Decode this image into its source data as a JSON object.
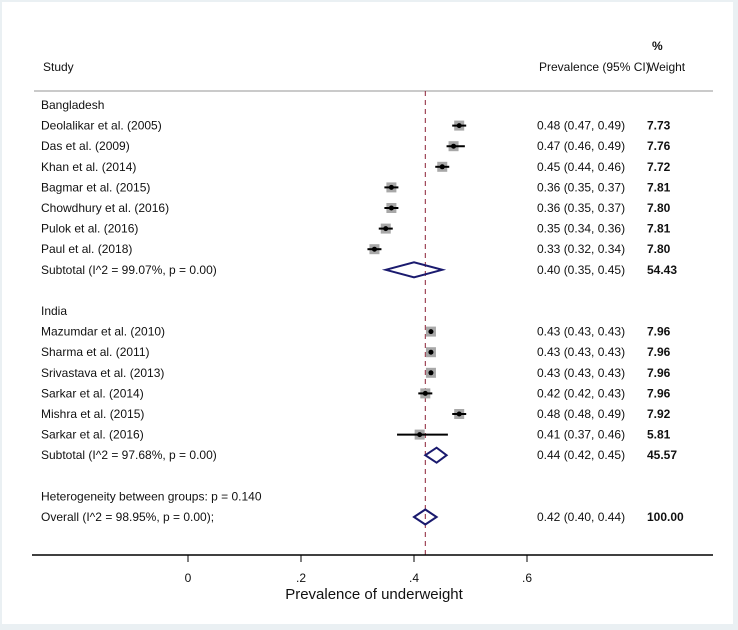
{
  "chart_data": {
    "type": "forest",
    "xlabel": "Prevalence of underweight",
    "xlim": [
      -0.27,
      0.93
    ],
    "xticks": [
      0,
      0.2,
      0.4,
      0.6
    ],
    "xtick_labels": [
      "0",
      ".2",
      ".4",
      ".6"
    ],
    "reference_line": 0.42,
    "headers": {
      "study": "Study",
      "estimate": "Prevalence (95% CI)",
      "weight_top": "%",
      "weight": "Weight"
    },
    "rows": [
      {
        "kind": "group",
        "label": "Bangladesh"
      },
      {
        "kind": "study",
        "label": "Deolalikar et al. (2005)",
        "est": 0.48,
        "lo": 0.47,
        "hi": 0.49,
        "text": "0.48 (0.47, 0.49)",
        "weight": "7.73"
      },
      {
        "kind": "study",
        "label": "Das et al. (2009)",
        "est": 0.47,
        "lo": 0.46,
        "hi": 0.49,
        "text": "0.47 (0.46, 0.49)",
        "weight": "7.76"
      },
      {
        "kind": "study",
        "label": "Khan et al. (2014)",
        "est": 0.45,
        "lo": 0.44,
        "hi": 0.46,
        "text": "0.45 (0.44, 0.46)",
        "weight": "7.72"
      },
      {
        "kind": "study",
        "label": "Bagmar et al. (2015)",
        "est": 0.36,
        "lo": 0.35,
        "hi": 0.37,
        "text": "0.36 (0.35, 0.37)",
        "weight": "7.81"
      },
      {
        "kind": "study",
        "label": "Chowdhury et al. (2016)",
        "est": 0.36,
        "lo": 0.35,
        "hi": 0.37,
        "text": "0.36 (0.35, 0.37)",
        "weight": "7.80"
      },
      {
        "kind": "study",
        "label": "Pulok et al. (2016)",
        "est": 0.35,
        "lo": 0.34,
        "hi": 0.36,
        "text": "0.35 (0.34, 0.36)",
        "weight": "7.81"
      },
      {
        "kind": "study",
        "label": "Paul et al. (2018)",
        "est": 0.33,
        "lo": 0.32,
        "hi": 0.34,
        "text": "0.33 (0.32, 0.34)",
        "weight": "7.80"
      },
      {
        "kind": "subtotal",
        "label": "Subtotal  (I^2 = 99.07%, p = 0.00)",
        "est": 0.4,
        "lo": 0.35,
        "hi": 0.45,
        "text": "0.40 (0.35, 0.45)",
        "weight": "54.43"
      },
      {
        "kind": "blank"
      },
      {
        "kind": "group",
        "label": "India"
      },
      {
        "kind": "study",
        "label": "Mazumdar et al. (2010)",
        "est": 0.43,
        "lo": 0.43,
        "hi": 0.43,
        "text": "0.43 (0.43, 0.43)",
        "weight": "7.96"
      },
      {
        "kind": "study",
        "label": "Sharma et al. (2011)",
        "est": 0.43,
        "lo": 0.43,
        "hi": 0.43,
        "text": "0.43 (0.43, 0.43)",
        "weight": "7.96"
      },
      {
        "kind": "study",
        "label": "Srivastava et al. (2013)",
        "est": 0.43,
        "lo": 0.43,
        "hi": 0.43,
        "text": "0.43 (0.43, 0.43)",
        "weight": "7.96"
      },
      {
        "kind": "study",
        "label": "Sarkar et al. (2014)",
        "est": 0.42,
        "lo": 0.42,
        "hi": 0.43,
        "text": "0.42 (0.42, 0.43)",
        "weight": "7.96"
      },
      {
        "kind": "study",
        "label": "Mishra et al. (2015)",
        "est": 0.48,
        "lo": 0.48,
        "hi": 0.49,
        "text": "0.48 (0.48, 0.49)",
        "weight": "7.92"
      },
      {
        "kind": "study",
        "label": "Sarkar et al. (2016)",
        "est": 0.41,
        "lo": 0.37,
        "hi": 0.46,
        "text": "0.41 (0.37, 0.46)",
        "weight": "5.81"
      },
      {
        "kind": "subtotal",
        "label": "Subtotal  (I^2 = 97.68%, p = 0.00)",
        "est": 0.44,
        "lo": 0.42,
        "hi": 0.45,
        "text": "0.44 (0.42, 0.45)",
        "weight": "45.57"
      },
      {
        "kind": "blank"
      },
      {
        "kind": "note",
        "label": "Heterogeneity between groups: p = 0.140"
      },
      {
        "kind": "overall",
        "label": "Overall  (I^2 = 98.95%, p = 0.00);",
        "est": 0.42,
        "lo": 0.4,
        "hi": 0.44,
        "text": "0.42 (0.40, 0.44)",
        "weight": "100.00"
      }
    ],
    "colors": {
      "marker_box": "#a8a8a8",
      "ci_line": "#000000",
      "diamond": "#1a1a6e",
      "reference_line": "#8b2035",
      "header_rule": "#b8b8b8",
      "axis": "#000000"
    }
  }
}
